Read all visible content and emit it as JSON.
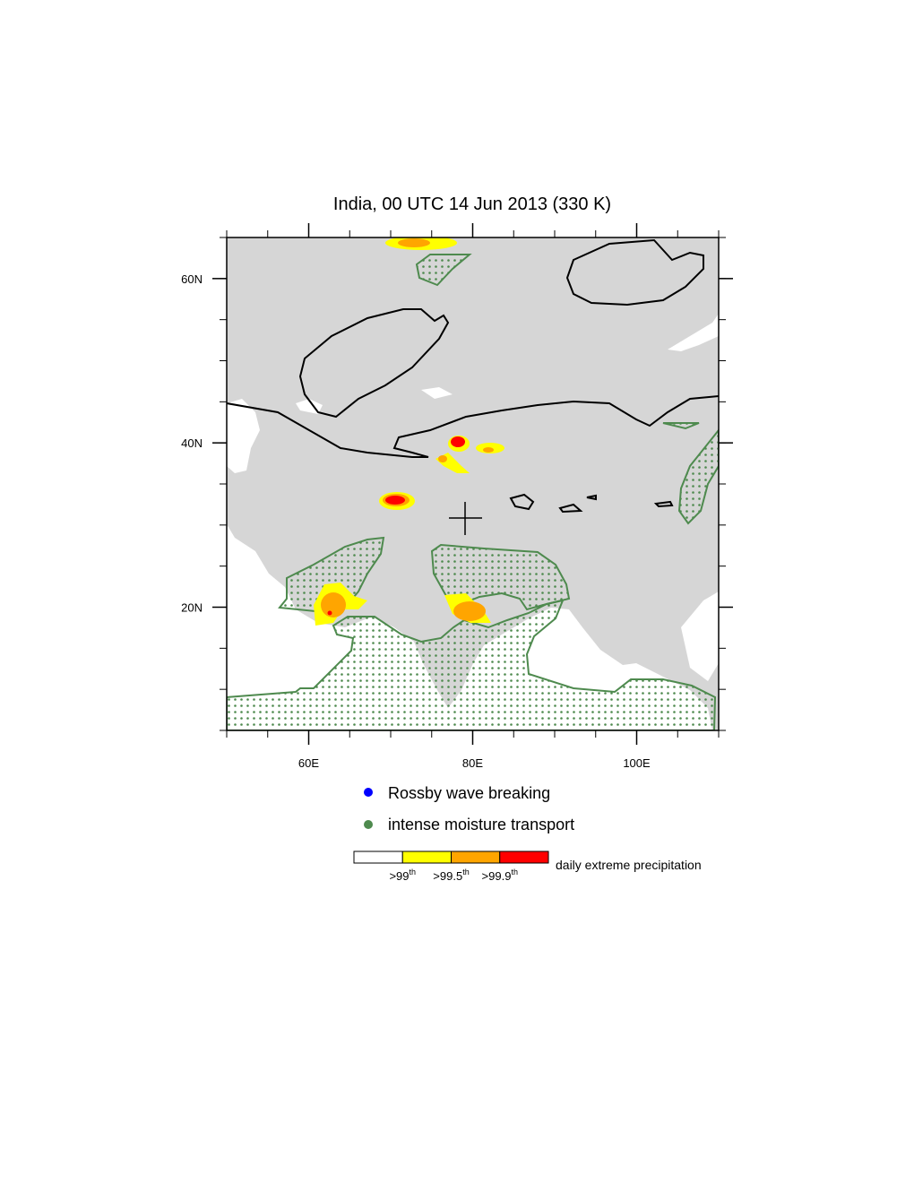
{
  "title": "India, 00 UTC 14 Jun 2013 (330 K)",
  "map": {
    "lon_range": [
      50,
      110
    ],
    "lat_range": [
      5,
      65
    ],
    "x_ticks": [
      {
        "value": 60,
        "label": "60E"
      },
      {
        "value": 80,
        "label": "80E"
      },
      {
        "value": 100,
        "label": "100E"
      }
    ],
    "y_ticks": [
      {
        "value": 60,
        "label": "60N"
      },
      {
        "value": 40,
        "label": "40N"
      },
      {
        "value": 20,
        "label": "20N"
      }
    ]
  },
  "legend": [
    {
      "label": "Rossby wave breaking",
      "color": "#0000ff"
    },
    {
      "label": "intense moisture transport",
      "color": "#4e8a4e"
    }
  ],
  "colorbar": {
    "title": "daily extreme precipitation",
    "colors": [
      "#ffffff",
      "#ffff00",
      "#ffa500",
      "#ff0000"
    ],
    "labels": [
      {
        "base": ">99",
        "sup": "th"
      },
      {
        "base": ">99.5",
        "sup": "th"
      },
      {
        "base": ">99.9",
        "sup": "th"
      }
    ]
  }
}
